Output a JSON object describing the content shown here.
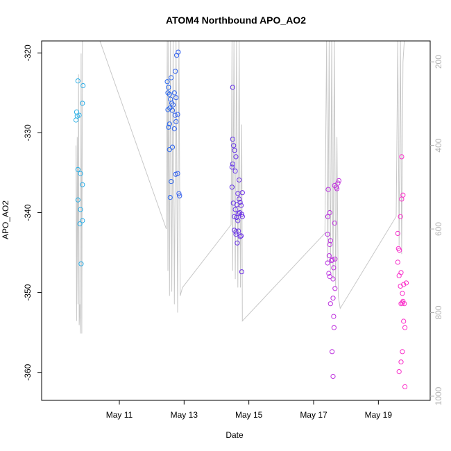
{
  "chart_data": {
    "type": "scatter",
    "title": "ATOM4 Northbound APO_AO2",
    "xlabel": "Date",
    "ylabel": "APO_AO2",
    "xlim": [
      8.6,
      20.6
    ],
    "ylim": [
      -363.5,
      -318.5
    ],
    "x_ticks": [
      {
        "value": 11,
        "label": "May 11"
      },
      {
        "value": 13,
        "label": "May 13"
      },
      {
        "value": 15,
        "label": "May 15"
      },
      {
        "value": 17,
        "label": "May 17"
      },
      {
        "value": 19,
        "label": "May 19"
      }
    ],
    "y_ticks": [
      -320,
      -330,
      -340,
      -350,
      -360
    ],
    "y2_ticks": [
      200,
      400,
      600,
      800,
      1000
    ],
    "y2lim": [
      1010,
      150
    ],
    "grid": false,
    "legend": "none",
    "point_color_gradient": [
      "#2bb3e6",
      "#1e6ff0",
      "#6b2ee6",
      "#b52fe0",
      "#ff2fc8"
    ],
    "line_color": "#c8c8c8",
    "series": [
      {
        "kind": "points",
        "points": [
          [
            9.72,
            -323.5
          ],
          [
            9.88,
            -324.1
          ],
          [
            9.68,
            -327.4
          ],
          [
            9.7,
            -327.9
          ],
          [
            9.76,
            -327.8
          ],
          [
            9.66,
            -328.4
          ],
          [
            9.86,
            -326.3
          ],
          [
            9.72,
            -334.6
          ],
          [
            9.8,
            -335.1
          ],
          [
            9.86,
            -336.5
          ],
          [
            9.72,
            -338.4
          ],
          [
            9.8,
            -339.6
          ],
          [
            9.86,
            -341.0
          ],
          [
            9.78,
            -341.4
          ],
          [
            9.82,
            -346.4
          ],
          [
            12.48,
            -323.6
          ],
          [
            12.52,
            -324.3
          ],
          [
            12.6,
            -323.1
          ],
          [
            12.73,
            -322.3
          ],
          [
            12.77,
            -320.3
          ],
          [
            12.82,
            -319.9
          ],
          [
            12.5,
            -325.0
          ],
          [
            12.55,
            -325.2
          ],
          [
            12.58,
            -325.8
          ],
          [
            12.62,
            -326.3
          ],
          [
            12.66,
            -326.5
          ],
          [
            12.7,
            -325.0
          ],
          [
            12.75,
            -325.6
          ],
          [
            12.5,
            -327.1
          ],
          [
            12.56,
            -326.9
          ],
          [
            12.64,
            -327.2
          ],
          [
            12.72,
            -327.8
          ],
          [
            12.8,
            -327.7
          ],
          [
            12.52,
            -329.3
          ],
          [
            12.55,
            -328.9
          ],
          [
            12.7,
            -329.5
          ],
          [
            12.75,
            -328.6
          ],
          [
            12.55,
            -332.1
          ],
          [
            12.64,
            -331.8
          ],
          [
            12.6,
            -336.1
          ],
          [
            12.74,
            -335.2
          ],
          [
            12.8,
            -335.1
          ],
          [
            12.57,
            -338.1
          ],
          [
            12.84,
            -337.6
          ],
          [
            12.86,
            -337.9
          ],
          [
            14.5,
            -324.3
          ],
          [
            14.5,
            -330.8
          ],
          [
            14.53,
            -331.6
          ],
          [
            14.56,
            -332.2
          ],
          [
            14.6,
            -333.0
          ],
          [
            14.5,
            -333.9
          ],
          [
            14.48,
            -334.3
          ],
          [
            14.58,
            -334.8
          ],
          [
            14.7,
            -335.9
          ],
          [
            14.48,
            -336.8
          ],
          [
            14.8,
            -337.5
          ],
          [
            14.66,
            -337.6
          ],
          [
            14.7,
            -338.3
          ],
          [
            14.73,
            -338.7
          ],
          [
            14.52,
            -338.8
          ],
          [
            14.63,
            -339.0
          ],
          [
            14.58,
            -339.6
          ],
          [
            14.76,
            -339.1
          ],
          [
            14.68,
            -340.1
          ],
          [
            14.72,
            -340.0
          ],
          [
            14.78,
            -340.2
          ],
          [
            14.55,
            -340.5
          ],
          [
            14.62,
            -340.6
          ],
          [
            14.8,
            -340.5
          ],
          [
            14.66,
            -341.0
          ],
          [
            14.55,
            -342.2
          ],
          [
            14.6,
            -342.4
          ],
          [
            14.68,
            -342.3
          ],
          [
            14.6,
            -342.7
          ],
          [
            14.73,
            -343.0
          ],
          [
            14.76,
            -342.9
          ],
          [
            14.64,
            -343.8
          ],
          [
            14.78,
            -347.4
          ],
          [
            17.45,
            -337.1
          ],
          [
            17.5,
            -340.0
          ],
          [
            17.44,
            -340.5
          ],
          [
            17.65,
            -341.3
          ],
          [
            17.43,
            -342.7
          ],
          [
            17.52,
            -343.5
          ],
          [
            17.5,
            -344.0
          ],
          [
            17.48,
            -345.4
          ],
          [
            17.58,
            -345.9
          ],
          [
            17.55,
            -346.0
          ],
          [
            17.66,
            -345.8
          ],
          [
            17.43,
            -346.3
          ],
          [
            17.62,
            -346.9
          ],
          [
            17.47,
            -347.6
          ],
          [
            17.5,
            -348.0
          ],
          [
            17.6,
            -348.3
          ],
          [
            17.66,
            -349.5
          ],
          [
            17.52,
            -351.4
          ],
          [
            17.6,
            -350.7
          ],
          [
            17.62,
            -353.0
          ],
          [
            17.63,
            -354.4
          ],
          [
            17.57,
            -357.4
          ],
          [
            17.6,
            -360.5
          ],
          [
            17.65,
            -336.6
          ],
          [
            17.7,
            -336.8
          ],
          [
            17.75,
            -336.3
          ],
          [
            17.78,
            -336.0
          ],
          [
            17.72,
            -337.0
          ],
          [
            19.6,
            -342.6
          ],
          [
            19.62,
            -344.5
          ],
          [
            19.65,
            -344.7
          ],
          [
            19.6,
            -346.2
          ],
          [
            19.64,
            -347.9
          ],
          [
            19.7,
            -347.5
          ],
          [
            19.68,
            -349.2
          ],
          [
            19.74,
            -350.1
          ],
          [
            19.76,
            -351.1
          ],
          [
            19.8,
            -351.4
          ],
          [
            19.7,
            -351.4
          ],
          [
            19.74,
            -351.3
          ],
          [
            19.78,
            -349.0
          ],
          [
            19.86,
            -348.8
          ],
          [
            19.78,
            -353.6
          ],
          [
            19.82,
            -354.4
          ],
          [
            19.74,
            -357.4
          ],
          [
            19.7,
            -358.7
          ],
          [
            19.64,
            -359.9
          ],
          [
            19.82,
            -361.8
          ],
          [
            19.72,
            -333.0
          ],
          [
            19.76,
            -337.8
          ],
          [
            19.72,
            -338.3
          ],
          [
            19.68,
            -340.5
          ]
        ]
      },
      {
        "kind": "line",
        "axis": "right",
        "points": [
          [
            9.66,
            400
          ],
          [
            9.68,
            820
          ],
          [
            9.7,
            380
          ],
          [
            9.72,
            780
          ],
          [
            9.74,
            230
          ],
          [
            9.76,
            830
          ],
          [
            9.78,
            780
          ],
          [
            9.8,
            850
          ],
          [
            9.82,
            180
          ],
          [
            9.84,
            850
          ],
          [
            9.86,
            150
          ],
          [
            9.88,
            150
          ],
          [
            10.4,
            150
          ],
          [
            12.45,
            600
          ],
          [
            12.48,
            150
          ],
          [
            12.5,
            700
          ],
          [
            12.52,
            150
          ],
          [
            12.55,
            760
          ],
          [
            12.58,
            150
          ],
          [
            12.62,
            750
          ],
          [
            12.66,
            150
          ],
          [
            12.7,
            780
          ],
          [
            12.75,
            150
          ],
          [
            12.8,
            800
          ],
          [
            12.84,
            150
          ],
          [
            12.88,
            760
          ],
          [
            12.95,
            740
          ],
          [
            14.45,
            590
          ],
          [
            14.48,
            150
          ],
          [
            14.5,
            700
          ],
          [
            14.54,
            150
          ],
          [
            14.58,
            720
          ],
          [
            14.62,
            150
          ],
          [
            14.66,
            740
          ],
          [
            14.7,
            150
          ],
          [
            14.74,
            740
          ],
          [
            14.78,
            350
          ],
          [
            14.8,
            820
          ],
          [
            17.35,
            610
          ],
          [
            17.4,
            150
          ],
          [
            17.44,
            680
          ],
          [
            17.48,
            150
          ],
          [
            17.52,
            700
          ],
          [
            17.56,
            150
          ],
          [
            17.6,
            720
          ],
          [
            17.64,
            150
          ],
          [
            17.68,
            740
          ],
          [
            17.72,
            380
          ],
          [
            17.76,
            760
          ],
          [
            17.82,
            790
          ],
          [
            19.55,
            570
          ],
          [
            19.6,
            150
          ],
          [
            19.64,
            640
          ],
          [
            19.68,
            150
          ],
          [
            19.72,
            660
          ],
          [
            19.76,
            200
          ],
          [
            19.8,
            150
          ]
        ]
      }
    ]
  }
}
